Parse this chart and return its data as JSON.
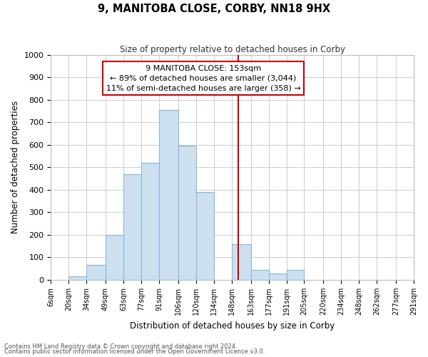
{
  "title": "9, MANITOBA CLOSE, CORBY, NN18 9HX",
  "subtitle": "Size of property relative to detached houses in Corby",
  "xlabel": "Distribution of detached houses by size in Corby",
  "ylabel": "Number of detached properties",
  "bin_edges": [
    6,
    20,
    34,
    49,
    63,
    77,
    91,
    106,
    120,
    134,
    148,
    163,
    177,
    191,
    205,
    220,
    234,
    248,
    262,
    277,
    291
  ],
  "bar_heights": [
    0,
    15,
    65,
    200,
    470,
    520,
    755,
    595,
    390,
    0,
    160,
    45,
    28,
    45,
    0,
    0,
    0,
    0,
    0,
    0
  ],
  "bar_color": "#cce0f0",
  "bar_edgecolor": "#88b8d8",
  "reference_line_x": 153,
  "reference_line_color": "#cc0000",
  "annotation_line1": "9 MANITOBA CLOSE: 153sqm",
  "annotation_line2": "← 89% of detached houses are smaller (3,044)",
  "annotation_line3": "11% of semi-detached houses are larger (358) →",
  "box_edgecolor": "#cc0000",
  "ylim": [
    0,
    1000
  ],
  "yticks": [
    0,
    100,
    200,
    300,
    400,
    500,
    600,
    700,
    800,
    900,
    1000
  ],
  "tick_labels": [
    "6sqm",
    "20sqm",
    "34sqm",
    "49sqm",
    "63sqm",
    "77sqm",
    "91sqm",
    "106sqm",
    "120sqm",
    "134sqm",
    "148sqm",
    "163sqm",
    "177sqm",
    "191sqm",
    "205sqm",
    "220sqm",
    "234sqm",
    "248sqm",
    "262sqm",
    "277sqm",
    "291sqm"
  ],
  "footnote1": "Contains HM Land Registry data © Crown copyright and database right 2024.",
  "footnote2": "Contains public sector information licensed under the Open Government Licence v3.0.",
  "bg_color": "#ffffff",
  "grid_color": "#cccccc"
}
